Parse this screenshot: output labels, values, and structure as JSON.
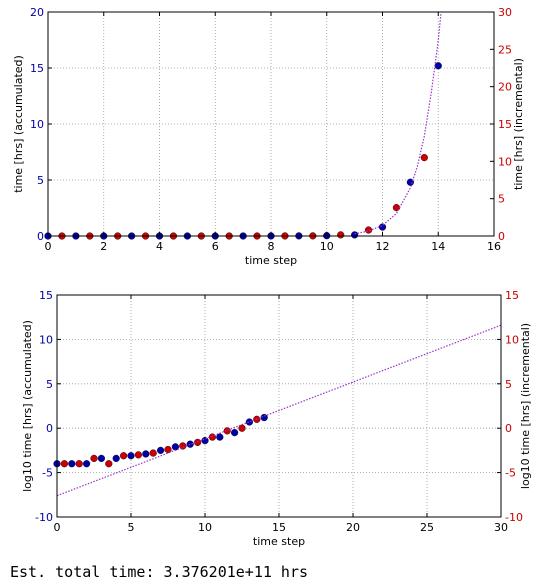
{
  "footer": {
    "estimate_text": "Est. total time: 3.376201e+11 hrs"
  },
  "colors": {
    "accumulated": "#0000aa",
    "incremental": "#cc0000",
    "fit": "#9933cc",
    "left_axis": "#0000aa",
    "right_axis": "#cc0000"
  },
  "chart_data": [
    {
      "type": "scatter",
      "xlabel": "time step",
      "ylabel_left": "time [hrs] (accumulated)",
      "ylabel_right": "time [hrs] (incremental)",
      "xlim": [
        0,
        16
      ],
      "ylim_left": [
        0,
        20
      ],
      "ylim_right": [
        0,
        30
      ],
      "x_ticks": [
        0,
        2,
        4,
        6,
        8,
        10,
        12,
        14,
        16
      ],
      "y_ticks_left": [
        0,
        5,
        10,
        15,
        20
      ],
      "y_ticks_right": [
        0,
        5,
        10,
        15,
        20,
        25,
        30
      ],
      "grid": true,
      "series": [
        {
          "axis": "left",
          "style": "points",
          "x": [
            0,
            1,
            2,
            3,
            4,
            5,
            6,
            7,
            8,
            9,
            10,
            11,
            12,
            13,
            14
          ],
          "values": [
            0.0001,
            0.0001,
            0.0002,
            0.0003,
            0.0005,
            0.0008,
            0.0015,
            0.003,
            0.005,
            0.01,
            0.03,
            0.1,
            0.8,
            4.8,
            15.2
          ]
        },
        {
          "axis": "right",
          "style": "points",
          "x": [
            0.5,
            1.5,
            2.5,
            3.5,
            4.5,
            5.5,
            6.5,
            7.5,
            8.5,
            9.5,
            10.5,
            11.5,
            12.5,
            13.5
          ],
          "values": [
            0.0001,
            0.0001,
            0.0004,
            0.0001,
            0.0007,
            0.001,
            0.002,
            0.003,
            0.01,
            0.02,
            0.15,
            0.8,
            3.8,
            10.5
          ]
        },
        {
          "axis": "left",
          "style": "dotted-line",
          "x": [
            11.0,
            11.5,
            12.0,
            12.5,
            13.0,
            13.25,
            13.5,
            13.75,
            14.0,
            14.1
          ],
          "values": [
            0.2,
            0.45,
            0.95,
            2.0,
            4.3,
            6.2,
            8.9,
            12.8,
            17.5,
            19.9
          ]
        }
      ]
    },
    {
      "type": "scatter",
      "xlabel": "time step",
      "ylabel_left": "log10 time [hrs] (accumulated)",
      "ylabel_right": "log10 time [hrs] (incremental)",
      "xlim": [
        0,
        30
      ],
      "ylim_left": [
        -10,
        15
      ],
      "ylim_right": [
        -10,
        15
      ],
      "x_ticks": [
        0,
        5,
        10,
        15,
        20,
        25,
        30
      ],
      "y_ticks_left": [
        -10,
        -5,
        0,
        5,
        10,
        15
      ],
      "y_ticks_right": [
        -10,
        -5,
        0,
        5,
        10,
        15
      ],
      "grid": true,
      "series": [
        {
          "axis": "left",
          "style": "points",
          "x": [
            0,
            1,
            2,
            3,
            4,
            5,
            6,
            7,
            8,
            9,
            10,
            11,
            12,
            13,
            14
          ],
          "values": [
            -4.0,
            -4.0,
            -4.0,
            -3.4,
            -3.4,
            -3.1,
            -2.9,
            -2.5,
            -2.1,
            -1.8,
            -1.4,
            -1.0,
            -0.5,
            0.7,
            1.2
          ]
        },
        {
          "axis": "right",
          "style": "points",
          "x": [
            0.5,
            1.5,
            2.5,
            3.5,
            4.5,
            5.5,
            6.5,
            7.5,
            8.5,
            9.5,
            10.5,
            11.5,
            12.5,
            13.5
          ],
          "values": [
            -4.0,
            -4.0,
            -3.4,
            -4.0,
            -3.1,
            -3.0,
            -2.8,
            -2.4,
            -2.0,
            -1.6,
            -1.0,
            -0.3,
            0.0,
            1.0
          ]
        },
        {
          "axis": "left",
          "style": "dotted-line",
          "x": [
            0,
            30
          ],
          "values": [
            -7.6,
            11.6
          ]
        }
      ]
    }
  ]
}
